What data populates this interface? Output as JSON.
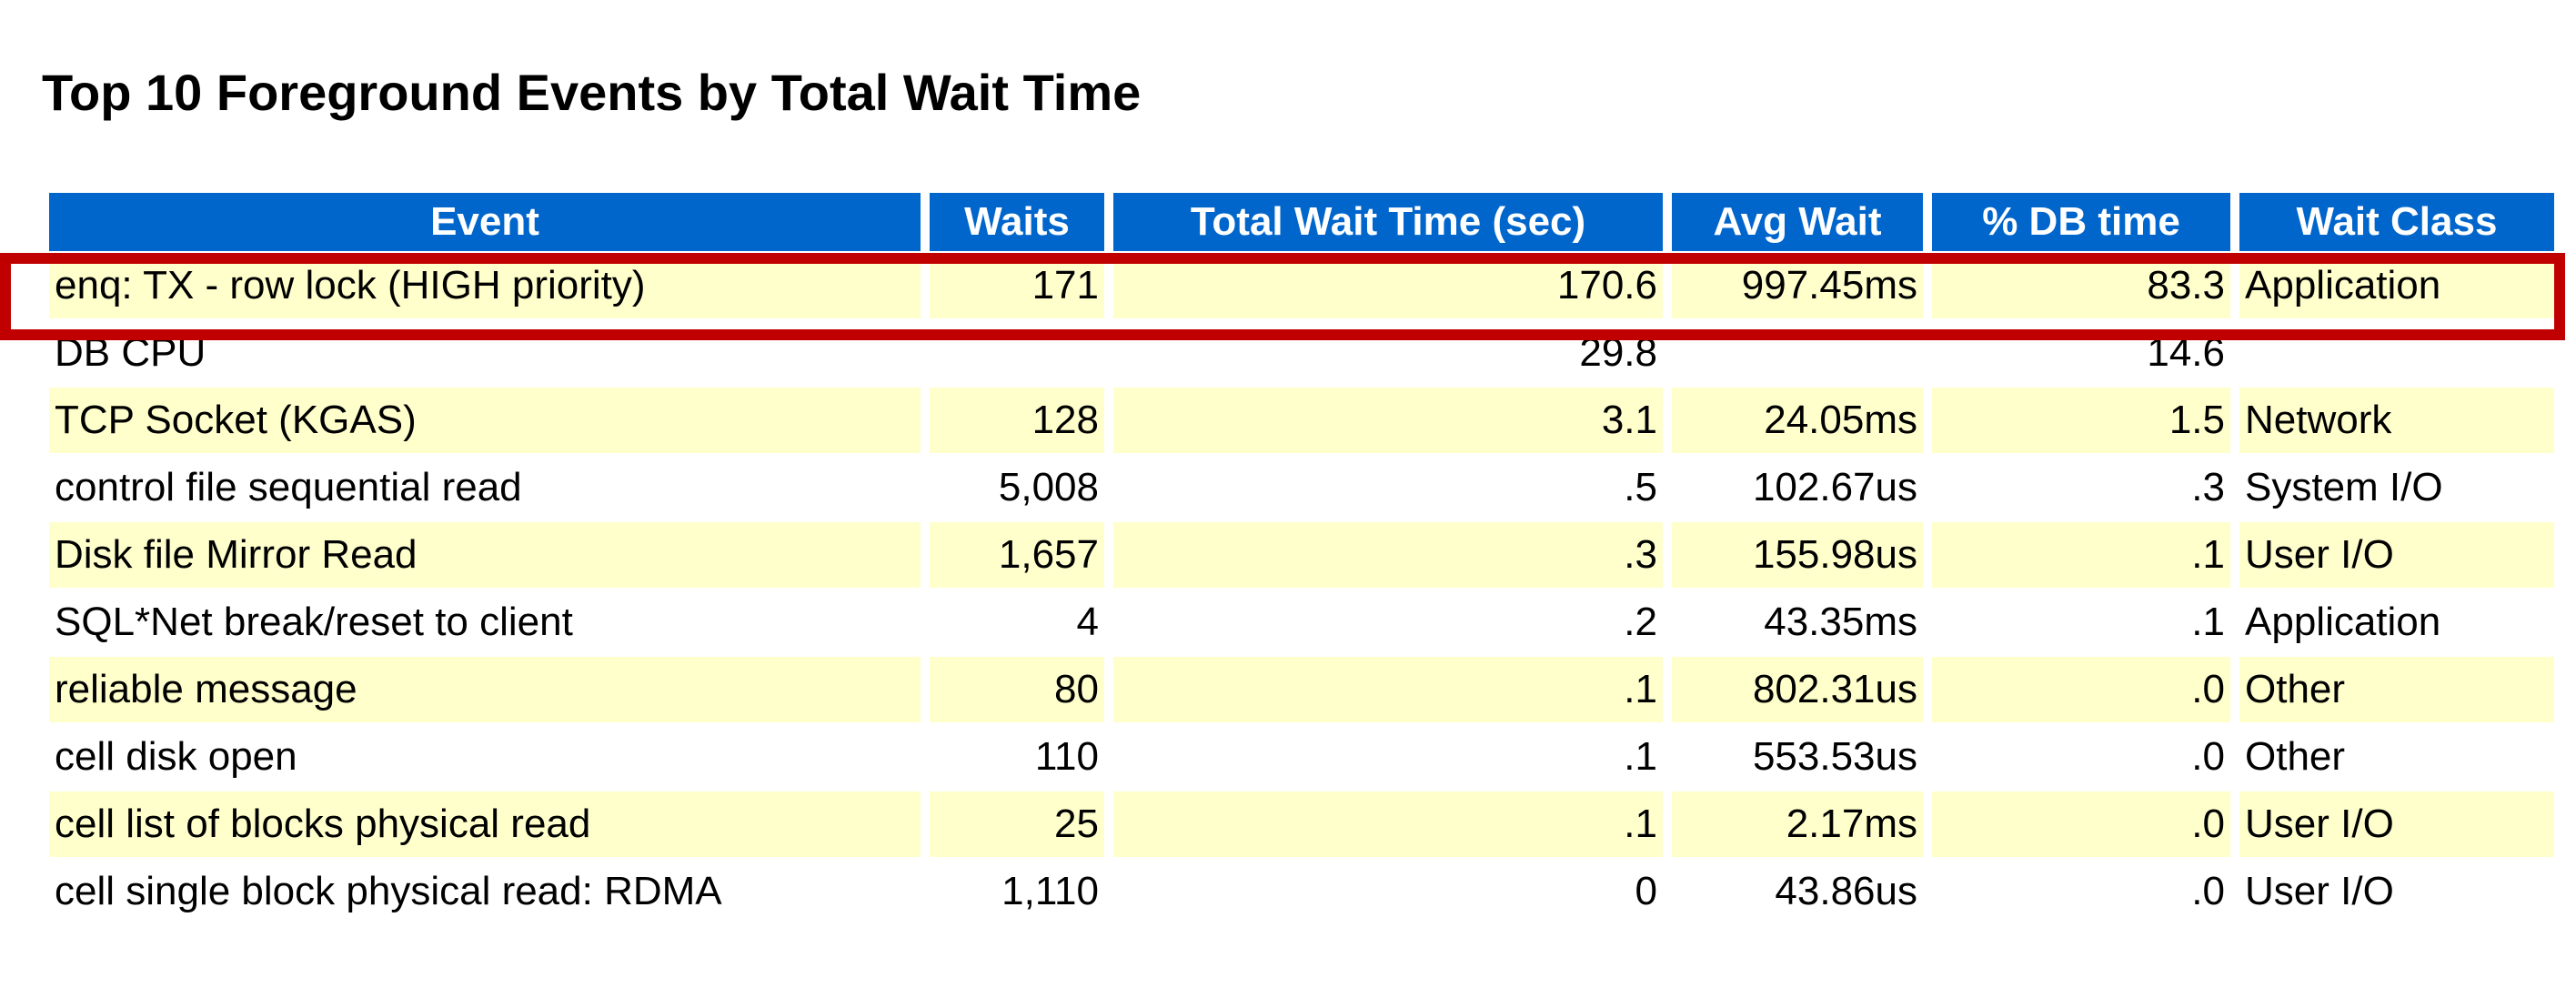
{
  "title": "Top 10 Foreground Events by Total Wait Time",
  "columns": [
    "Event",
    "Waits",
    "Total Wait Time (sec)",
    "Avg Wait",
    "% DB time",
    "Wait Class"
  ],
  "rows": [
    {
      "event": "enq: TX - row lock (HIGH priority)",
      "waits": "171",
      "total_wait": "170.6",
      "avg_wait": "997.45ms",
      "pct_db": "83.3",
      "wait_class": "Application"
    },
    {
      "event": "DB CPU",
      "waits": "",
      "total_wait": "29.8",
      "avg_wait": "",
      "pct_db": "14.6",
      "wait_class": ""
    },
    {
      "event": "TCP Socket (KGAS)",
      "waits": "128",
      "total_wait": "3.1",
      "avg_wait": "24.05ms",
      "pct_db": "1.5",
      "wait_class": "Network"
    },
    {
      "event": "control file sequential read",
      "waits": "5,008",
      "total_wait": ".5",
      "avg_wait": "102.67us",
      "pct_db": ".3",
      "wait_class": "System I/O"
    },
    {
      "event": "Disk file Mirror Read",
      "waits": "1,657",
      "total_wait": ".3",
      "avg_wait": "155.98us",
      "pct_db": ".1",
      "wait_class": "User I/O"
    },
    {
      "event": "SQL*Net break/reset to client",
      "waits": "4",
      "total_wait": ".2",
      "avg_wait": "43.35ms",
      "pct_db": ".1",
      "wait_class": "Application"
    },
    {
      "event": "reliable message",
      "waits": "80",
      "total_wait": ".1",
      "avg_wait": "802.31us",
      "pct_db": ".0",
      "wait_class": "Other"
    },
    {
      "event": "cell disk open",
      "waits": "110",
      "total_wait": ".1",
      "avg_wait": "553.53us",
      "pct_db": ".0",
      "wait_class": "Other"
    },
    {
      "event": "cell list of blocks physical read",
      "waits": "25",
      "total_wait": ".1",
      "avg_wait": "2.17ms",
      "pct_db": ".0",
      "wait_class": "User I/O"
    },
    {
      "event": "cell single block physical read: RDMA",
      "waits": "1,110",
      "total_wait": "0",
      "avg_wait": "43.86us",
      "pct_db": ".0",
      "wait_class": "User I/O"
    }
  ],
  "colors": {
    "header_bg": "#0066cc",
    "header_text": "#ffffff",
    "odd_row_bg": "#ffffcc",
    "even_row_bg": "#ffffff",
    "highlight_border": "#c00000"
  },
  "highlighted_row_index": 0
}
